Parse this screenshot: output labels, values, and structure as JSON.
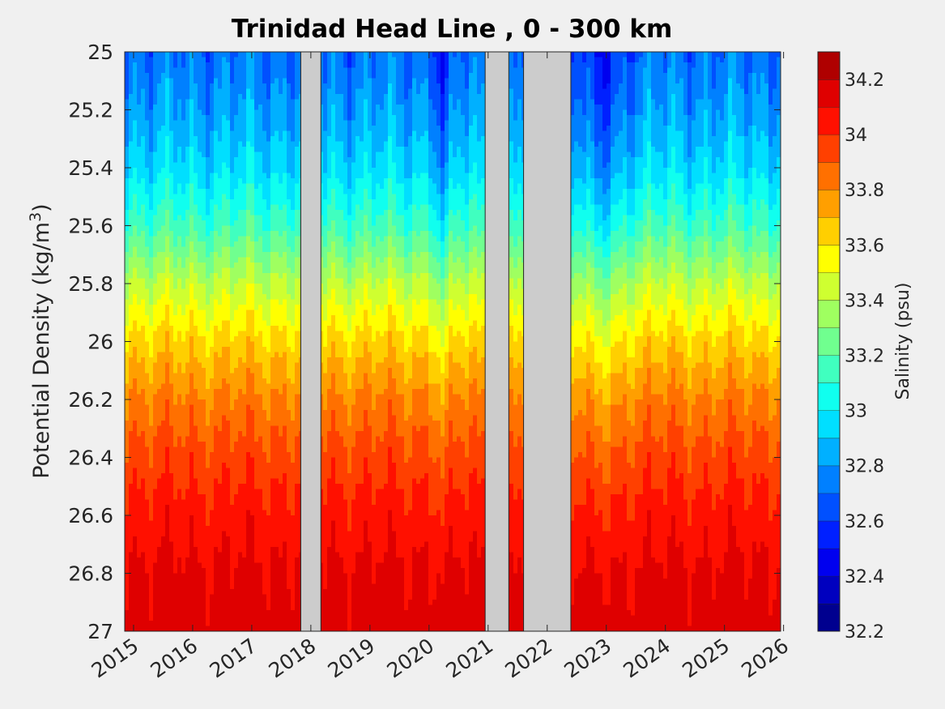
{
  "chart_data": {
    "type": "heatmap",
    "title": "Trinidad Head Line , 0 - 300 km",
    "ylabel": "Potential Density (kg/m",
    "ylabel_sup": "3",
    "ylabel_close": ")",
    "xlabel": "",
    "xlim": [
      2014.85,
      2025.95
    ],
    "ylim": [
      25,
      27
    ],
    "y_reversed": true,
    "x_ticks": [
      2015,
      2016,
      2017,
      2018,
      2019,
      2020,
      2021,
      2022,
      2023,
      2024,
      2025,
      2026
    ],
    "y_ticks": [
      "25",
      "25.2",
      "25.4",
      "25.6",
      "25.8",
      "26",
      "26.2",
      "26.4",
      "26.6",
      "26.8",
      "27"
    ],
    "colorbar": {
      "label": "Salinity (psu)",
      "range": [
        32.2,
        34.3
      ],
      "tick_labels": [
        "32.2",
        "32.4",
        "32.6",
        "32.8",
        "33",
        "33.2",
        "33.4",
        "33.6",
        "33.8",
        "34",
        "34.2"
      ],
      "levels": [
        32.2,
        32.3,
        32.4,
        32.5,
        32.6,
        32.7,
        32.8,
        32.9,
        33.0,
        33.1,
        33.2,
        33.3,
        33.4,
        33.5,
        33.6,
        33.7,
        33.8,
        33.9,
        34.0,
        34.1,
        34.2,
        34.3
      ],
      "colors": [
        "#00008f",
        "#0000bf",
        "#0000ef",
        "#0020ff",
        "#0050ff",
        "#0080ff",
        "#00b0ff",
        "#00dfff",
        "#10ffef",
        "#40ffbf",
        "#70ff8f",
        "#9fff60",
        "#cfff30",
        "#ffff00",
        "#ffcf00",
        "#ff9f00",
        "#ff7000",
        "#ff4000",
        "#ff1000",
        "#df0000",
        "#af0000"
      ]
    },
    "no_data_periods": [
      [
        2017.83,
        2018.17
      ],
      [
        2020.95,
        2021.35
      ],
      [
        2021.6,
        2022.4
      ]
    ],
    "profile": [
      {
        "sigma": 25.0,
        "salinity": 32.72
      },
      {
        "sigma": 25.2,
        "salinity": 32.82
      },
      {
        "sigma": 25.4,
        "salinity": 32.95
      },
      {
        "sigma": 25.6,
        "salinity": 33.15
      },
      {
        "sigma": 25.8,
        "salinity": 33.42
      },
      {
        "sigma": 26.0,
        "salinity": 33.64
      },
      {
        "sigma": 26.2,
        "salinity": 33.82
      },
      {
        "sigma": 26.4,
        "salinity": 33.95
      },
      {
        "sigma": 26.6,
        "salinity": 34.05
      },
      {
        "sigma": 26.8,
        "salinity": 34.12
      },
      {
        "sigma": 27.0,
        "salinity": 34.15
      }
    ],
    "grid": false
  }
}
